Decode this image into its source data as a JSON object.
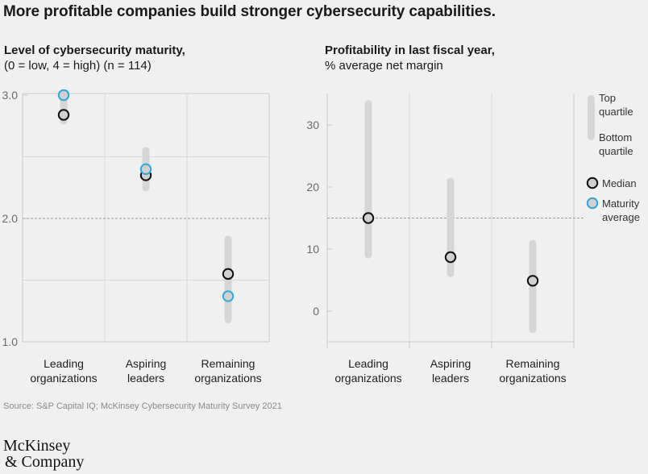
{
  "title": "More profitable companies build stronger cybersecurity capabilities.",
  "colors": {
    "median": "#111111",
    "maturity_average": "#2fa8dc",
    "range_bar": "#d6d6d6",
    "reference_line": "#9a9a9a"
  },
  "legend": {
    "range_top": "Top",
    "range_top_2": "quartile",
    "range_bottom": "Bottom",
    "range_bottom_2": "quartile",
    "median": "Median",
    "maturity_1": "Maturity",
    "maturity_2": "average"
  },
  "source": "Source: S&P Capital IQ; McKinsey Cybersecurity Maturity Survey 2021",
  "logo": {
    "line1": "McKinsey",
    "line2": "& Company"
  },
  "chart_data": [
    {
      "type": "range-dot",
      "title": "Level of cybersecurity maturity,",
      "subtitle": "(0 = low, 4 = high) (n = 114)",
      "categories": [
        [
          "Leading",
          "organizations"
        ],
        [
          "Aspiring",
          "leaders"
        ],
        [
          "Remaining",
          "organizations"
        ]
      ],
      "ylim": [
        1.0,
        3.0
      ],
      "yticks": [
        1.0,
        2.0,
        3.0
      ],
      "ytick_labels": [
        "1.0",
        "2.0",
        "3.0"
      ],
      "gridlines": [
        1.5,
        2.5
      ],
      "reference_line": 2.0,
      "range": [
        [
          2.76,
          3.0
        ],
        [
          2.22,
          2.58
        ],
        [
          1.15,
          1.86
        ]
      ],
      "median": [
        2.84,
        2.35,
        1.55
      ],
      "average": [
        3.0,
        2.4,
        1.37
      ]
    },
    {
      "type": "range-dot",
      "title": "Profitability in last fiscal year,",
      "subtitle": "% average net margin",
      "categories": [
        [
          "Leading",
          "organizations"
        ],
        [
          "Aspiring",
          "leaders"
        ],
        [
          "Remaining",
          "organizations"
        ]
      ],
      "ylim": [
        -5,
        35
      ],
      "yticks": [
        0,
        10,
        20,
        30
      ],
      "ytick_labels": [
        "0",
        "10",
        "20",
        "30"
      ],
      "gridlines": [],
      "reference_line": 15,
      "range": [
        [
          8.5,
          34
        ],
        [
          5.5,
          21.5
        ],
        [
          -3.5,
          11.5
        ]
      ],
      "median": [
        15,
        8.7,
        4.9
      ],
      "average": null
    }
  ]
}
